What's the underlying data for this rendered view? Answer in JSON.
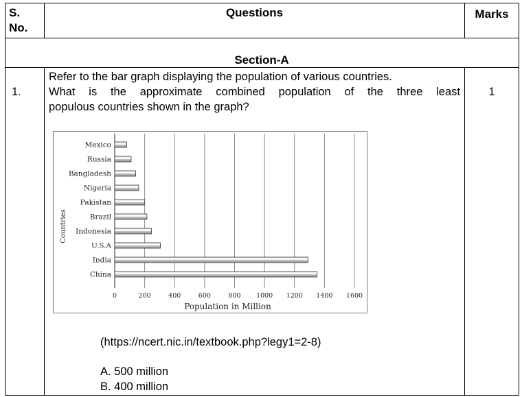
{
  "table": {
    "headers": {
      "sno": "S.\nNo.",
      "sno_line1": "S.",
      "sno_line2": "No.",
      "questions": "Questions",
      "marks": "Marks"
    },
    "section_title": "Section-A",
    "row": {
      "number": "1.",
      "question_lines": [
        "Refer to the bar graph displaying the population of various countries.",
        "What is the approximate combined population of the three least",
        "populous countries shown in the graph?"
      ],
      "marks": "1",
      "source": "(https://ncert.nic.in/textbook.php?legy1=2-8)",
      "options": [
        "A. 500 million",
        "B. 400 million"
      ]
    }
  },
  "chart_data": {
    "type": "bar",
    "orientation": "horizontal",
    "categories": [
      "Mexico",
      "Russia",
      "Bangladesh",
      "Nigeria",
      "Pakistan",
      "Brazil",
      "Indonesia",
      "U.S.A",
      "India",
      "China"
    ],
    "values": [
      80,
      110,
      140,
      160,
      200,
      215,
      245,
      305,
      1290,
      1350
    ],
    "xlabel": "Population in Million",
    "ylabel": "Countries",
    "xlim": [
      0,
      1600
    ],
    "xticks": [
      "0",
      "200",
      "400",
      "600",
      "800",
      "1000",
      "1200",
      "1400",
      "1600"
    ],
    "grid": "vertical",
    "bar_color": "#9a9a9a"
  }
}
